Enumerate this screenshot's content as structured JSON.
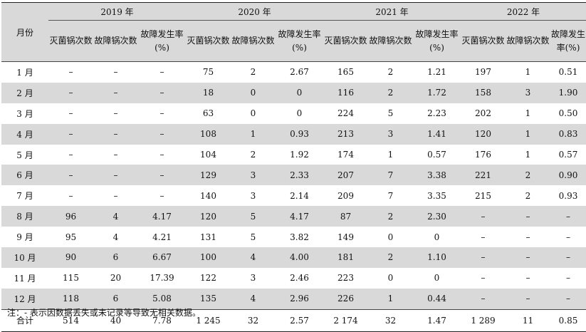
{
  "table": {
    "month_header": "月份",
    "year_groups": [
      "2019 年",
      "2020 年",
      "2021 年",
      "2022 年"
    ],
    "sub_headers": [
      "灭菌锅次数",
      "故障锅次数",
      "故障发生率(%)"
    ],
    "rows": [
      {
        "month": "1 月",
        "cells": [
          "–",
          "–",
          "–",
          "75",
          "2",
          "2.67",
          "165",
          "2",
          "1.21",
          "197",
          "1",
          "0.51"
        ]
      },
      {
        "month": "2 月",
        "cells": [
          "–",
          "–",
          "–",
          "18",
          "0",
          "0",
          "116",
          "2",
          "1.72",
          "158",
          "3",
          "1.90"
        ]
      },
      {
        "month": "3 月",
        "cells": [
          "–",
          "–",
          "–",
          "63",
          "0",
          "0",
          "224",
          "5",
          "2.23",
          "202",
          "1",
          "0.50"
        ]
      },
      {
        "month": "4 月",
        "cells": [
          "–",
          "–",
          "–",
          "108",
          "1",
          "0.93",
          "213",
          "3",
          "1.41",
          "120",
          "1",
          "0.83"
        ]
      },
      {
        "month": "5 月",
        "cells": [
          "–",
          "–",
          "–",
          "104",
          "2",
          "1.92",
          "174",
          "1",
          "0.57",
          "176",
          "1",
          "0.57"
        ]
      },
      {
        "month": "6 月",
        "cells": [
          "–",
          "–",
          "–",
          "129",
          "3",
          "2.33",
          "207",
          "7",
          "3.38",
          "221",
          "2",
          "0.90"
        ]
      },
      {
        "month": "7 月",
        "cells": [
          "–",
          "–",
          "–",
          "140",
          "3",
          "2.14",
          "209",
          "7",
          "3.35",
          "215",
          "2",
          "0.93"
        ]
      },
      {
        "month": "8 月",
        "cells": [
          "96",
          "4",
          "4.17",
          "120",
          "5",
          "4.17",
          "87",
          "2",
          "2.30",
          "–",
          "–",
          "–"
        ]
      },
      {
        "month": "9 月",
        "cells": [
          "95",
          "4",
          "4.21",
          "131",
          "5",
          "3.82",
          "149",
          "0",
          "0",
          "–",
          "–",
          "–"
        ]
      },
      {
        "month": "10 月",
        "cells": [
          "90",
          "6",
          "6.67",
          "100",
          "4",
          "4.00",
          "181",
          "2",
          "1.10",
          "–",
          "–",
          "–"
        ]
      },
      {
        "month": "11 月",
        "cells": [
          "115",
          "20",
          "17.39",
          "122",
          "3",
          "2.46",
          "223",
          "0",
          "0",
          "–",
          "–",
          "–"
        ]
      },
      {
        "month": "12 月",
        "cells": [
          "118",
          "6",
          "5.08",
          "135",
          "4",
          "2.96",
          "226",
          "1",
          "0.44",
          "–",
          "–",
          "–"
        ]
      },
      {
        "month": "合计",
        "cells": [
          "514",
          "40",
          "7.78",
          "1 245",
          "32",
          "2.57",
          "2 174",
          "32",
          "1.47",
          "1 289",
          "11",
          "0.85"
        ]
      }
    ]
  },
  "note": "注：- 表示因数据丢失或未记录等导致无相关数据。"
}
